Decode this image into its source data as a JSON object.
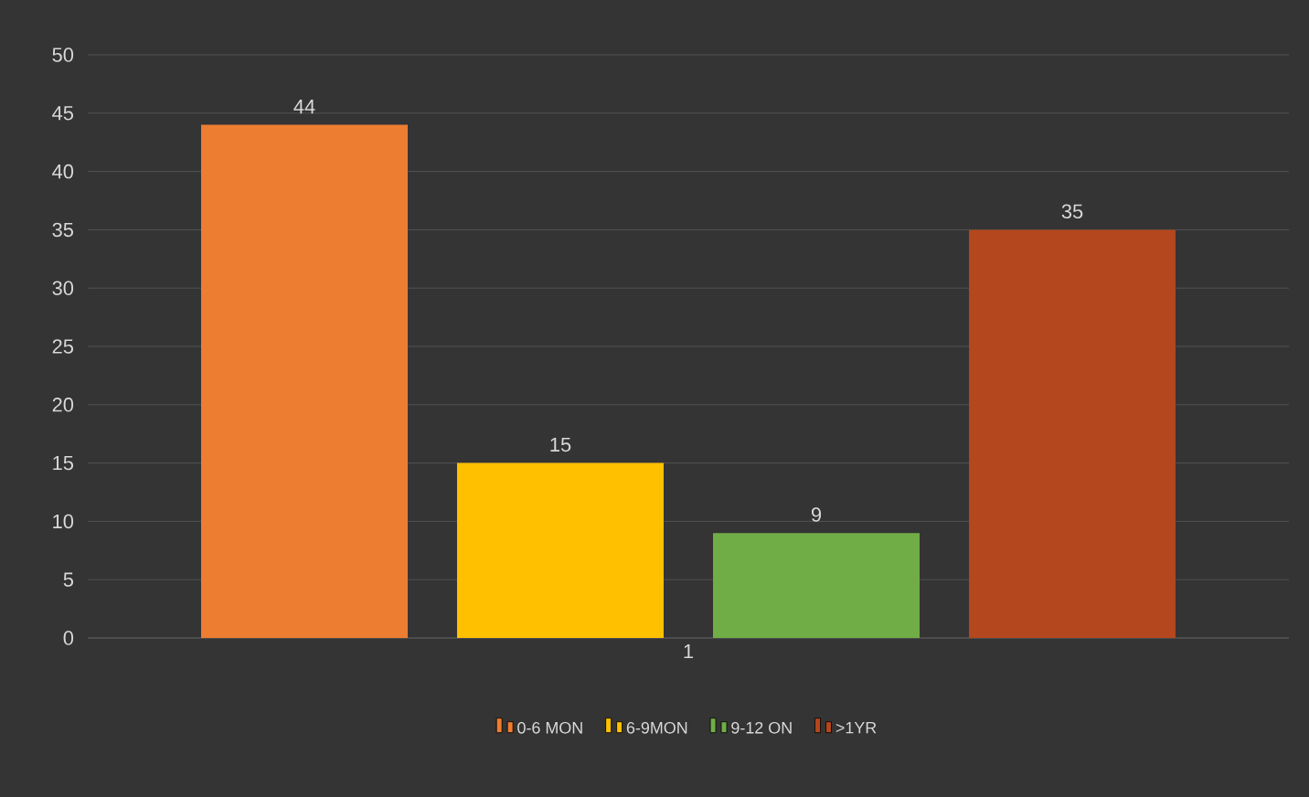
{
  "chart_data": {
    "type": "bar",
    "categories": [
      "1"
    ],
    "series": [
      {
        "name": "0-6 MON",
        "color": "#ed7d31",
        "values": [
          44
        ],
        "value_labels": [
          "44"
        ]
      },
      {
        "name": "6-9MON",
        "color": "#ffc000",
        "values": [
          15
        ],
        "value_labels": [
          "15"
        ]
      },
      {
        "name": "9-12 ON",
        "color": "#70ad47",
        "values": [
          9
        ],
        "value_labels": [
          "9"
        ]
      },
      {
        "name": ">1YR",
        "color": "#b4471d",
        "values": [
          35
        ],
        "value_labels": [
          "35"
        ]
      }
    ],
    "ylim": [
      0,
      50
    ],
    "yticks": [
      0,
      5,
      10,
      15,
      20,
      25,
      30,
      35,
      40,
      45,
      50
    ],
    "grid": "y",
    "legend": "bottom"
  }
}
